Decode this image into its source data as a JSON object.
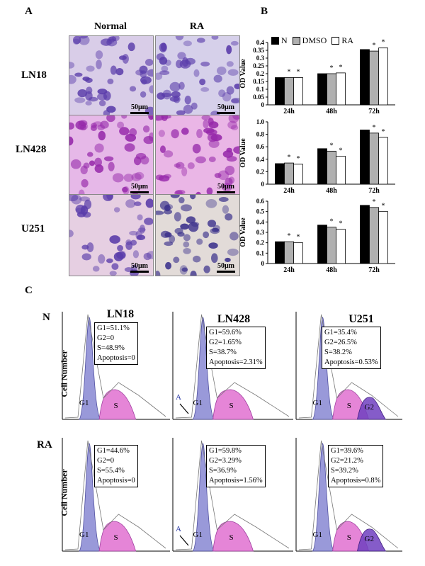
{
  "panels": {
    "a": {
      "letter": "A",
      "col_normal": "Normal",
      "col_ra": "RA",
      "rows": [
        {
          "label": "LN18"
        },
        {
          "label": "LN428"
        },
        {
          "label": "U251"
        }
      ],
      "scale_label": "50μm"
    },
    "b": {
      "letter": "B"
    },
    "c": {
      "letter": "C",
      "cond_n": "N",
      "cond_ra": "RA",
      "ylabel": "Cell Number",
      "col_titles": [
        "LN18",
        "LN428",
        "U251"
      ],
      "n_stats": [
        [
          "G1=51.1%",
          "G2=0",
          "S=48.9%",
          "Apoptosis=0"
        ],
        [
          "G1=59.6%",
          "G2=1.65%",
          "S=38.7%",
          "Apoptosis=2.31%"
        ],
        [
          "G1=35.4%",
          "G2=26.5%",
          "S=38.2%",
          "Apoptosis=0.53%"
        ]
      ],
      "ra_stats": [
        [
          "G1=44.6%",
          "G2=0",
          "S=55.4%",
          "Apoptosis=0"
        ],
        [
          "G1=59.8%",
          "G2=3.29%",
          "S=36.9%",
          "Apoptosis=1.56%"
        ],
        [
          "G1=39.6%",
          "G2=21.2%",
          "S=39.2%",
          "Apoptosis=0.8%"
        ]
      ],
      "peak_labels": {
        "g1": "G1",
        "s": "S",
        "g2": "G2",
        "a": "A"
      }
    }
  },
  "chart_data": [
    {
      "type": "bar",
      "legend": [
        "N",
        "DMSO",
        "RA"
      ],
      "colors": [
        "#000000",
        "#b0b0b0",
        "#ffffff"
      ],
      "categories": [
        "24h",
        "48h",
        "72h"
      ],
      "ylabel": "OD Value",
      "ylim": [
        0,
        0.4
      ],
      "yticks": [
        "0",
        "0.05",
        "0.1",
        "0.15",
        "0.2",
        "0.25",
        "0.3",
        "0.35",
        "0.4"
      ],
      "series": [
        {
          "name": "N",
          "values": [
            0.175,
            0.2,
            0.355
          ]
        },
        {
          "name": "DMSO",
          "values": [
            0.175,
            0.2,
            0.345
          ]
        },
        {
          "name": "RA",
          "values": [
            0.175,
            0.205,
            0.365
          ]
        }
      ]
    },
    {
      "type": "bar",
      "categories": [
        "24h",
        "48h",
        "72h"
      ],
      "ylabel": "OD Value",
      "ylim": [
        0,
        1.0
      ],
      "yticks": [
        "0",
        "0.2",
        "0.4",
        "0.6",
        "0.8",
        "1.0"
      ],
      "series": [
        {
          "name": "N",
          "values": [
            0.33,
            0.57,
            0.87
          ]
        },
        {
          "name": "DMSO",
          "values": [
            0.34,
            0.53,
            0.82
          ]
        },
        {
          "name": "RA",
          "values": [
            0.32,
            0.45,
            0.75
          ]
        }
      ]
    },
    {
      "type": "bar",
      "categories": [
        "24h",
        "48h",
        "72h"
      ],
      "ylabel": "OD Value",
      "ylim": [
        0,
        0.6
      ],
      "yticks": [
        "0",
        "0.1",
        "0.2",
        "0.3",
        "0.4",
        "0.5",
        "0.6"
      ],
      "series": [
        {
          "name": "N",
          "values": [
            0.21,
            0.37,
            0.56
          ]
        },
        {
          "name": "DMSO",
          "values": [
            0.21,
            0.35,
            0.54
          ]
        },
        {
          "name": "RA",
          "values": [
            0.2,
            0.33,
            0.5
          ]
        }
      ]
    }
  ]
}
